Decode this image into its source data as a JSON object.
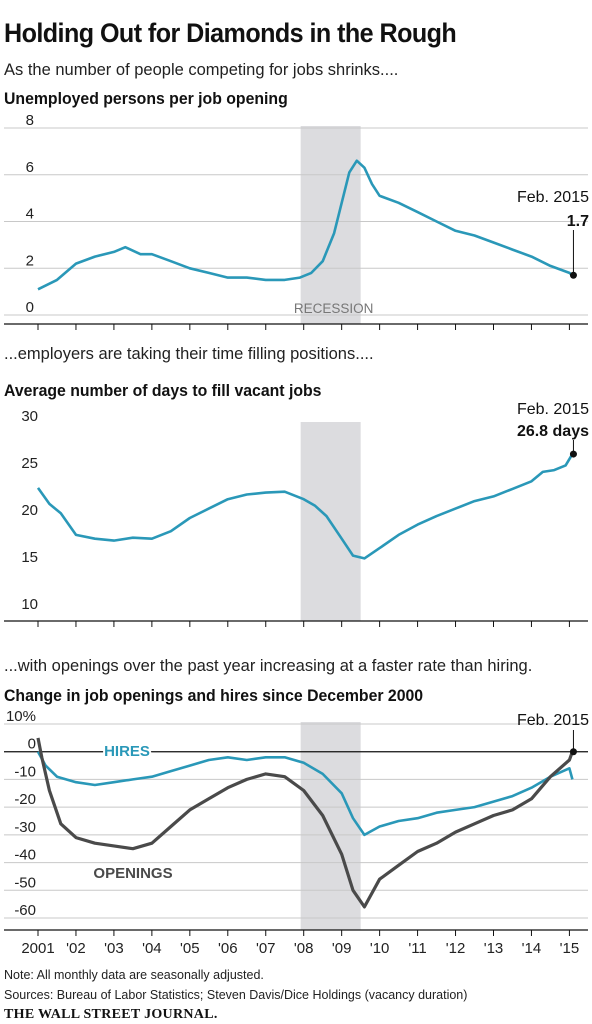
{
  "title": "Holding Out for Diamonds in the Rough",
  "subtitle": "As the number of people competing for jobs shrinks....",
  "panels": [
    {
      "lead": "",
      "heading": "Unemployed persons per job opening"
    },
    {
      "lead": "...employers are taking their time filling positions....",
      "heading": "Average number of days to fill vacant jobs"
    },
    {
      "lead": "...with openings over the past year increasing at a faster rate than hiring.",
      "heading": "Change in job openings and hires since December 2000"
    }
  ],
  "footer": {
    "note": "Note: All monthly data are seasonally adjusted.",
    "sources": "Sources: Bureau of Labor Statistics; Steven Davis/Dice Holdings (vacancy duration)",
    "brand": "THE WALL STREET JOURNAL."
  },
  "colors": {
    "series_blue": "#2a98b8",
    "series_dark": "#4a4a4a",
    "recession": "#dcdcdf",
    "grid": "#c8c8c8"
  },
  "chart_data": [
    {
      "type": "line",
      "title": "Unemployed persons per job opening",
      "x_range": [
        2001.0,
        2015.2
      ],
      "ylim": [
        0,
        8
      ],
      "y_ticks": [
        0,
        2,
        4,
        6,
        8
      ],
      "y_tick_labels": [
        "0",
        "2",
        "4",
        "6",
        "8"
      ],
      "grid": true,
      "shaded_region": {
        "label": "RECESSION",
        "x": [
          2007.92,
          2009.5
        ]
      },
      "series": [
        {
          "name": "",
          "x": [
            2001.0,
            2001.5,
            2002.0,
            2002.5,
            2003.0,
            2003.3,
            2003.7,
            2004.0,
            2004.5,
            2005.0,
            2005.5,
            2006.0,
            2006.5,
            2007.0,
            2007.5,
            2007.9,
            2008.2,
            2008.5,
            2008.8,
            2009.0,
            2009.2,
            2009.4,
            2009.6,
            2009.8,
            2010.0,
            2010.5,
            2011.0,
            2011.5,
            2012.0,
            2012.5,
            2013.0,
            2013.5,
            2014.0,
            2014.5,
            2015.0,
            2015.08
          ],
          "y": [
            1.1,
            1.5,
            2.2,
            2.5,
            2.7,
            2.9,
            2.6,
            2.6,
            2.3,
            2.0,
            1.8,
            1.6,
            1.6,
            1.5,
            1.5,
            1.6,
            1.8,
            2.3,
            3.5,
            4.8,
            6.1,
            6.6,
            6.3,
            5.6,
            5.1,
            4.8,
            4.4,
            4.0,
            3.6,
            3.4,
            3.1,
            2.8,
            2.5,
            2.1,
            1.8,
            1.7
          ]
        }
      ],
      "annotation": {
        "label": "Feb. 2015",
        "value_label": "1.7",
        "x": 2015.08,
        "y": 1.7
      }
    },
    {
      "type": "line",
      "title": "Average number of days to fill vacant jobs",
      "x_range": [
        2001.0,
        2015.2
      ],
      "ylim": [
        10,
        30
      ],
      "y_ticks": [
        10,
        15,
        20,
        25,
        30
      ],
      "y_tick_labels": [
        "10",
        "15",
        "20",
        "25",
        "30"
      ],
      "grid": false,
      "shaded_region": {
        "label": "",
        "x": [
          2007.92,
          2009.5
        ]
      },
      "series": [
        {
          "name": "",
          "x": [
            2001.0,
            2001.3,
            2001.6,
            2002.0,
            2002.5,
            2003.0,
            2003.5,
            2004.0,
            2004.5,
            2005.0,
            2005.5,
            2006.0,
            2006.5,
            2007.0,
            2007.5,
            2008.0,
            2008.3,
            2008.6,
            2009.0,
            2009.3,
            2009.6,
            2010.0,
            2010.5,
            2011.0,
            2011.5,
            2012.0,
            2012.5,
            2013.0,
            2013.5,
            2014.0,
            2014.3,
            2014.6,
            2014.9,
            2015.08
          ],
          "y": [
            23.2,
            21.5,
            20.5,
            18.2,
            17.8,
            17.6,
            17.9,
            17.8,
            18.6,
            20.0,
            21.0,
            22.0,
            22.5,
            22.7,
            22.8,
            22.0,
            21.3,
            20.2,
            17.8,
            16.0,
            15.7,
            16.8,
            18.2,
            19.3,
            20.2,
            21.0,
            21.8,
            22.3,
            23.1,
            23.9,
            24.9,
            25.1,
            25.6,
            26.8
          ]
        }
      ],
      "annotation": {
        "label": "Feb. 2015",
        "value_label": "26.8 days",
        "x": 2015.08,
        "y": 26.8
      }
    },
    {
      "type": "line",
      "title": "Change in job openings and hires since December 2000",
      "x_range": [
        2001.0,
        2015.2
      ],
      "ylim": [
        -60,
        10
      ],
      "y_ticks": [
        10,
        0,
        -10,
        -20,
        -30,
        -40,
        -50,
        -60
      ],
      "y_tick_labels": [
        "10%",
        "0",
        "-10",
        "-20",
        "-30",
        "-40",
        "-50",
        "-60"
      ],
      "x_ticks": [
        2001,
        2002,
        2003,
        2004,
        2005,
        2006,
        2007,
        2008,
        2009,
        2010,
        2011,
        2012,
        2013,
        2014,
        2015
      ],
      "x_tick_labels": [
        "2001",
        "'02",
        "'03",
        "'04",
        "'05",
        "'06",
        "'07",
        "'08",
        "'09",
        "'10",
        "'11",
        "'12",
        "'13",
        "'14",
        "'15"
      ],
      "grid": true,
      "shaded_region": {
        "label": "",
        "x": [
          2007.92,
          2009.5
        ]
      },
      "series": [
        {
          "name": "HIRES",
          "x": [
            2001.0,
            2001.2,
            2001.5,
            2002.0,
            2002.5,
            2003.0,
            2003.5,
            2004.0,
            2004.5,
            2005.0,
            2005.5,
            2006.0,
            2006.5,
            2007.0,
            2007.5,
            2008.0,
            2008.5,
            2009.0,
            2009.3,
            2009.6,
            2010.0,
            2010.5,
            2011.0,
            2011.5,
            2012.0,
            2012.5,
            2013.0,
            2013.5,
            2014.0,
            2014.5,
            2015.0,
            2015.08
          ],
          "y": [
            0,
            -5,
            -9,
            -11,
            -12,
            -11,
            -10,
            -9,
            -7,
            -5,
            -3,
            -2,
            -3,
            -2,
            -2,
            -4,
            -8,
            -15,
            -24,
            -30,
            -27,
            -25,
            -24,
            -22,
            -21,
            -20,
            -18,
            -16,
            -13,
            -9,
            -6,
            -10
          ]
        },
        {
          "name": "OPENINGS",
          "x": [
            2001.0,
            2001.1,
            2001.3,
            2001.6,
            2002.0,
            2002.5,
            2003.0,
            2003.5,
            2004.0,
            2004.5,
            2005.0,
            2005.5,
            2006.0,
            2006.5,
            2007.0,
            2007.5,
            2008.0,
            2008.5,
            2009.0,
            2009.3,
            2009.6,
            2010.0,
            2010.5,
            2011.0,
            2011.5,
            2012.0,
            2012.5,
            2013.0,
            2013.5,
            2014.0,
            2014.5,
            2015.0,
            2015.08
          ],
          "y": [
            5,
            -2,
            -14,
            -26,
            -31,
            -33,
            -34,
            -35,
            -33,
            -27,
            -21,
            -17,
            -13,
            -10,
            -8,
            -9,
            -14,
            -23,
            -37,
            -50,
            -56,
            -46,
            -41,
            -36,
            -33,
            -29,
            -26,
            -23,
            -21,
            -17,
            -9,
            -3,
            0
          ]
        }
      ],
      "annotation": {
        "label": "Feb. 2015",
        "value_label": "",
        "x": 2015.08,
        "y": 0
      }
    }
  ]
}
